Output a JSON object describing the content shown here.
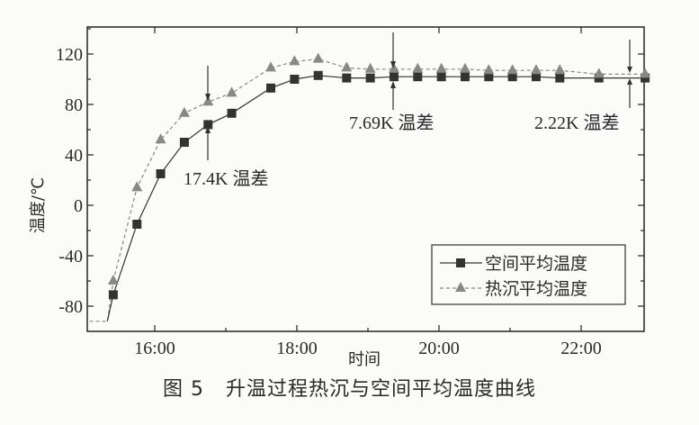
{
  "chart_data": {
    "type": "line",
    "title": "",
    "caption": {
      "figure_number": "图 5",
      "text": "升温过程热沉与空间平均温度曲线"
    },
    "xlabel": "时间",
    "ylabel": "温度/℃",
    "xlim": [
      "15:05",
      "22:55"
    ],
    "ylim": [
      -100,
      140
    ],
    "yticks": [
      -80,
      -40,
      0,
      40,
      80,
      120
    ],
    "xticks": [
      "16:00",
      "18:00",
      "20:00",
      "22:00"
    ],
    "grid": false,
    "legend_position": "lower right",
    "series": [
      {
        "name": "空间平均温度",
        "marker": "square",
        "line": "solid",
        "color": "#333333",
        "x": [
          "15:25",
          "15:45",
          "16:05",
          "16:25",
          "16:45",
          "17:05",
          "17:38",
          "17:58",
          "18:18",
          "18:42",
          "19:02",
          "19:22",
          "19:42",
          "20:02",
          "20:22",
          "20:42",
          "21:02",
          "21:22",
          "21:42",
          "22:15",
          "22:54"
        ],
        "values": [
          -71,
          -15,
          25,
          50,
          64,
          73,
          93,
          100,
          103,
          101,
          101,
          102,
          102,
          102,
          102,
          102,
          102,
          102,
          101,
          101,
          101
        ]
      },
      {
        "name": "热沉平均温度",
        "marker": "triangle",
        "line": "dashed",
        "color": "#888888",
        "x": [
          "15:25",
          "15:45",
          "16:05",
          "16:25",
          "16:45",
          "17:05",
          "17:38",
          "17:58",
          "18:18",
          "18:42",
          "19:02",
          "19:22",
          "19:42",
          "20:02",
          "20:22",
          "20:42",
          "21:02",
          "21:22",
          "21:42",
          "22:15",
          "22:54"
        ],
        "values": [
          -60,
          14,
          52,
          73,
          82,
          89,
          109,
          114,
          116,
          109,
          108,
          108,
          108,
          108,
          108,
          107,
          107,
          107,
          107,
          104,
          104
        ]
      }
    ],
    "pre_segment": {
      "x": [
        "15:05",
        "15:20"
      ],
      "values": [
        -92,
        -92
      ]
    },
    "annotations": [
      {
        "text": "17.4K 温差",
        "at_time": "16:45",
        "value_low": 64,
        "value_high": 82
      },
      {
        "text": "7.69K 温差",
        "at_time": "19:22",
        "value_low": 102,
        "value_high": 108
      },
      {
        "text": "2.22K 温差",
        "at_time": "22:54",
        "value_low": 101,
        "value_high": 104
      }
    ]
  },
  "labels": {
    "ylabel": "温度/℃",
    "xlabel": "时间",
    "yticks": [
      "120",
      "80",
      "40",
      "0",
      "-40",
      "-80"
    ],
    "xticks": [
      "16:00",
      "18:00",
      "20:00",
      "22:00"
    ],
    "legend": [
      "空间平均温度",
      "热沉平均温度"
    ],
    "annotations": [
      "17.4K 温差",
      "7.69K 温差",
      "2.22K 温差"
    ],
    "caption_num": "图 5",
    "caption_text": "升温过程热沉与空间平均温度曲线"
  }
}
